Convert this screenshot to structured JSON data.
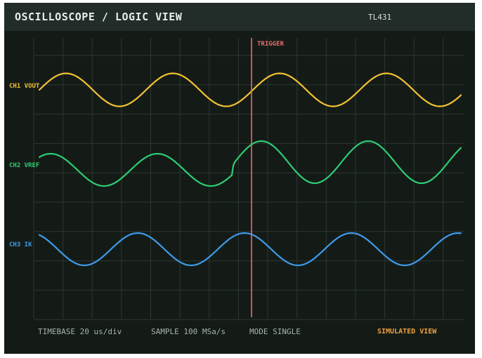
{
  "header": {
    "title": "OSCILLOSCOPE / LOGIC VIEW",
    "device": "TL431"
  },
  "trigger_label": "TRIGGER",
  "channels": [
    {
      "label": "CH1 VOUT",
      "color": "#f2c230"
    },
    {
      "label": "CH2 VREF",
      "color": "#2ecc71"
    },
    {
      "label": "CH3 IK",
      "color": "#3d9be9"
    }
  ],
  "footer": {
    "timebase": "TIMEBASE  20 us/div",
    "sample": "SAMPLE 100 MSa/s",
    "mode": "MODE SINGLE",
    "simulated": "SIMULATED VIEW"
  },
  "colors": {
    "trigger": "#ee6a6a",
    "grid": "#2c3732"
  }
}
